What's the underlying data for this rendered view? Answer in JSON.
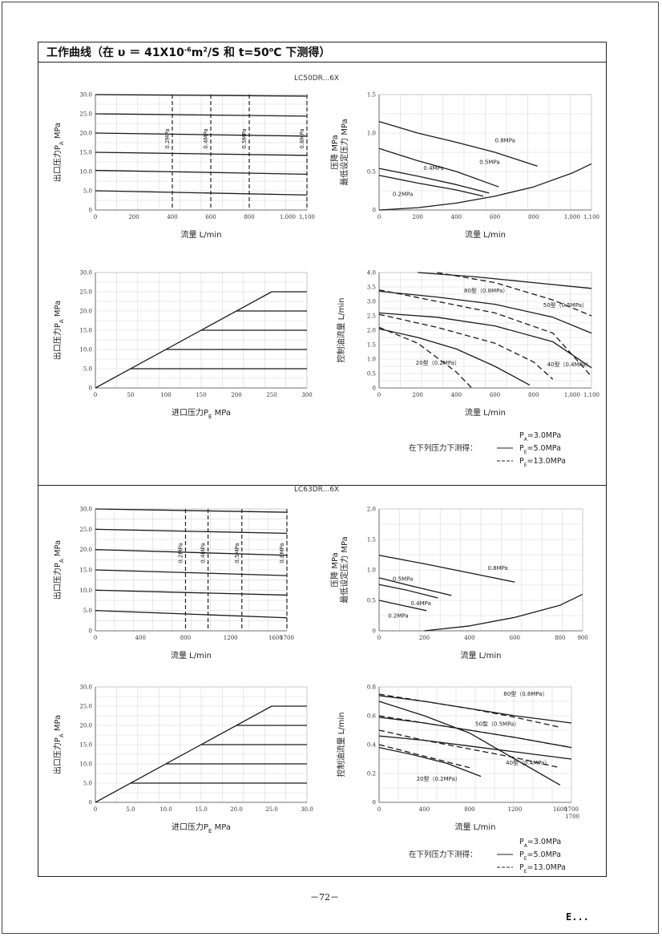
{
  "document": {
    "title_html": "工作曲线（在 υ ＝ 41X10<sup>-6</sup>m<sup>2</sup>/S 和 t=50<sup>o</sup>C 下测得）",
    "page_number": "－72－",
    "logo_text": "E..."
  },
  "sections": [
    {
      "model_label": "LC50DR...6X"
    },
    {
      "model_label": "LC63DR...6X"
    }
  ],
  "legend": {
    "prefix": "在下列压力下测得：",
    "items": [
      {
        "label": "P",
        "sub": "A",
        "value": "=3.0MPa",
        "style": "none"
      },
      {
        "label": "P",
        "sub": "E",
        "value": "=5.0MPa",
        "style": "solid"
      },
      {
        "label": "P",
        "sub": "E",
        "value": "=13.0MPa",
        "style": "dashed"
      }
    ]
  },
  "chart_data": [
    {
      "id": "lc50-outlet-vs-flow",
      "type": "line",
      "xlabel": {
        "text": "流量 L/min"
      },
      "ylabel": {
        "text": "出口压力P",
        "sub": "A",
        "unit": " MPa"
      },
      "xlim": [
        0,
        1100
      ],
      "ylim": [
        0,
        30
      ],
      "xticks": [
        "0",
        "200",
        "400",
        "600",
        "800",
        "1,000",
        "1,100"
      ],
      "xtick_values": [
        0,
        200,
        400,
        600,
        800,
        1000,
        1100
      ],
      "yticks": [
        "0",
        "5.0",
        "10.0",
        "15.0",
        "20.0",
        "25.0",
        "30.0"
      ],
      "ytick_values": [
        0,
        5,
        10,
        15,
        20,
        25,
        30
      ],
      "series": [
        {
          "x": [
            0,
            1100
          ],
          "y": [
            30,
            29.6
          ]
        },
        {
          "x": [
            0,
            1100
          ],
          "y": [
            25,
            24.4
          ]
        },
        {
          "x": [
            0,
            1100
          ],
          "y": [
            20,
            19.2
          ]
        },
        {
          "x": [
            0,
            1100
          ],
          "y": [
            15,
            14.2
          ]
        },
        {
          "x": [
            0,
            1100
          ],
          "y": [
            10.3,
            9.3
          ]
        },
        {
          "x": [
            0,
            1100
          ],
          "y": [
            5,
            3.9
          ]
        }
      ],
      "vlines": [
        {
          "x": 400,
          "label": "0.2MPa"
        },
        {
          "x": 600,
          "label": "0.4MPa"
        },
        {
          "x": 800,
          "label": "0.5MPa"
        },
        {
          "x": 1100,
          "label": "0.8MPa"
        }
      ]
    },
    {
      "id": "lc50-pressure-drop",
      "type": "line",
      "xlabel": {
        "text": "流量 L/min"
      },
      "ylabel": {
        "text": "压降 MPa",
        "text2": "最低设定压力 MPa"
      },
      "xlim": [
        0,
        1100
      ],
      "ylim": [
        0,
        1.5
      ],
      "xticks": [
        "0",
        "200",
        "400",
        "600",
        "800",
        "1,000",
        "1,100"
      ],
      "xtick_values": [
        0,
        200,
        400,
        600,
        800,
        1000,
        1100
      ],
      "yticks": [
        "0",
        "0.5",
        "1.0",
        "1.5"
      ],
      "ytick_values": [
        0,
        0.5,
        1.0,
        1.5
      ],
      "series": [
        {
          "x": [
            0,
            200,
            400,
            600,
            820
          ],
          "y": [
            1.15,
            1.0,
            0.88,
            0.75,
            0.57
          ]
        },
        {
          "x": [
            0,
            200,
            400,
            620
          ],
          "y": [
            0.8,
            0.64,
            0.5,
            0.3
          ]
        },
        {
          "x": [
            0,
            200,
            400,
            570
          ],
          "y": [
            0.54,
            0.44,
            0.33,
            0.22
          ]
        },
        {
          "x": [
            0,
            200,
            400,
            540
          ],
          "y": [
            0.45,
            0.35,
            0.26,
            0.18
          ]
        },
        {
          "x": [
            0,
            200,
            400,
            600,
            800,
            1000,
            1100
          ],
          "y": [
            0,
            0.03,
            0.09,
            0.18,
            0.3,
            0.48,
            0.6
          ]
        }
      ],
      "annotations": [
        {
          "text": "0.8MPa",
          "x": 600,
          "y": 0.88
        },
        {
          "text": "0.5MPa",
          "x": 520,
          "y": 0.6
        },
        {
          "text": "0.4MPa",
          "x": 230,
          "y": 0.52
        },
        {
          "text": "0.2MPa",
          "x": 70,
          "y": 0.18
        }
      ]
    },
    {
      "id": "lc50-outlet-vs-inlet",
      "type": "line",
      "xlabel": {
        "text": "进口压力P",
        "sub": "E",
        "unit": " MPa"
      },
      "ylabel": {
        "text": "出口压力P",
        "sub": "A",
        "unit": " MPa"
      },
      "xlim": [
        0,
        300
      ],
      "ylim": [
        0,
        30
      ],
      "xticks": [
        "0",
        "50",
        "100",
        "150",
        "200",
        "250",
        "300"
      ],
      "xtick_values": [
        0,
        50,
        100,
        150,
        200,
        250,
        300
      ],
      "yticks": [
        "0",
        "5.0",
        "10.0",
        "15.0",
        "20.0",
        "25.0",
        "30.0"
      ],
      "ytick_values": [
        0,
        5,
        10,
        15,
        20,
        25,
        30
      ],
      "series": [
        {
          "x": [
            0,
            250,
            300
          ],
          "y": [
            0,
            25,
            25
          ]
        },
        {
          "x": [
            200,
            300
          ],
          "y": [
            20,
            20
          ]
        },
        {
          "x": [
            150,
            300
          ],
          "y": [
            15,
            15
          ]
        },
        {
          "x": [
            100,
            300
          ],
          "y": [
            10,
            10
          ]
        },
        {
          "x": [
            50,
            300
          ],
          "y": [
            5,
            5
          ]
        }
      ]
    },
    {
      "id": "lc50-control-oil-flow",
      "type": "line",
      "xlabel": {
        "text": "流量 L/min"
      },
      "ylabel": {
        "text": "控制油流量 L/min"
      },
      "xlim": [
        0,
        1100
      ],
      "ylim": [
        0,
        4.0
      ],
      "xticks": [
        "0",
        "200",
        "400",
        "600",
        "800",
        "1,000",
        "1,100"
      ],
      "xtick_values": [
        0,
        200,
        400,
        600,
        800,
        1000,
        1100
      ],
      "yticks": [
        "0",
        "0.5",
        "1.0",
        "1.5",
        "2.0",
        "2.5",
        "3.0",
        "3.5",
        "4.0"
      ],
      "ytick_values": [
        0,
        0.5,
        1.0,
        1.5,
        2.0,
        2.5,
        3.0,
        3.5,
        4.0
      ],
      "series": [
        {
          "x": [
            200,
            500,
            800,
            1100
          ],
          "y": [
            4.0,
            3.85,
            3.65,
            3.45
          ],
          "style": "solid"
        },
        {
          "x": [
            0,
            300,
            600,
            900,
            1100
          ],
          "y": [
            3.35,
            3.15,
            2.9,
            2.45,
            1.9
          ],
          "style": "solid"
        },
        {
          "x": [
            0,
            300,
            600,
            900,
            1100
          ],
          "y": [
            2.6,
            2.45,
            2.15,
            1.6,
            0.7
          ],
          "style": "solid"
        },
        {
          "x": [
            0,
            200,
            400,
            600,
            780
          ],
          "y": [
            2.05,
            1.75,
            1.35,
            0.75,
            0.1
          ],
          "style": "solid"
        },
        {
          "x": [
            300,
            600,
            900,
            1100
          ],
          "y": [
            4.0,
            3.65,
            3.05,
            2.5
          ],
          "style": "dashed"
        },
        {
          "x": [
            0,
            300,
            600,
            900,
            1100
          ],
          "y": [
            3.4,
            3.0,
            2.6,
            1.9,
            0.4
          ],
          "style": "dashed"
        },
        {
          "x": [
            0,
            300,
            600,
            800,
            900
          ],
          "y": [
            2.55,
            2.1,
            1.55,
            0.9,
            0.3
          ],
          "style": "dashed"
        },
        {
          "x": [
            0,
            200,
            400,
            480
          ],
          "y": [
            2.1,
            1.55,
            0.55,
            0.0
          ],
          "style": "dashed"
        }
      ],
      "annotations": [
        {
          "text": "80型（0.8MPa）",
          "x": 440,
          "y": 3.3
        },
        {
          "text": "50型（0.5MPa）",
          "x": 850,
          "y": 2.8
        },
        {
          "text": "40型（0.4MPa）",
          "x": 870,
          "y": 0.75
        },
        {
          "text": "20型（0.2MPa）",
          "x": 190,
          "y": 0.8
        }
      ]
    },
    {
      "id": "lc63-outlet-vs-flow",
      "type": "line",
      "xlabel": {
        "text": "流量 L/min"
      },
      "ylabel": {
        "text": "出口压力P",
        "sub": "A",
        "unit": " MPa"
      },
      "xlim": [
        0,
        1700
      ],
      "ylim": [
        0,
        30
      ],
      "xticks": [
        "0",
        "400",
        "800",
        "1200",
        "1600",
        "1700"
      ],
      "xtick_values": [
        0,
        400,
        800,
        1200,
        1600,
        1700
      ],
      "yticks": [
        "0",
        "5.0",
        "10.0",
        "15.0",
        "20.0",
        "25.0",
        "30.0"
      ],
      "ytick_values": [
        0,
        5,
        10,
        15,
        20,
        25,
        30
      ],
      "series": [
        {
          "x": [
            0,
            1700
          ],
          "y": [
            30,
            29.2
          ]
        },
        {
          "x": [
            0,
            1700
          ],
          "y": [
            25,
            24
          ]
        },
        {
          "x": [
            0,
            1700
          ],
          "y": [
            20,
            18.6
          ]
        },
        {
          "x": [
            0,
            1700
          ],
          "y": [
            15,
            13.6
          ]
        },
        {
          "x": [
            0,
            1700
          ],
          "y": [
            10,
            8.8
          ]
        },
        {
          "x": [
            0,
            1700
          ],
          "y": [
            5,
            3.2
          ]
        }
      ],
      "vlines": [
        {
          "x": 800,
          "label": "0.2MPa"
        },
        {
          "x": 1000,
          "label": "0.4MPa"
        },
        {
          "x": 1300,
          "label": "0.5MPa"
        },
        {
          "x": 1700,
          "label": "0.8MPa"
        }
      ]
    },
    {
      "id": "lc63-pressure-drop",
      "type": "line",
      "xlabel": {
        "text": "流量 L/min"
      },
      "ylabel": {
        "text": "压降 MPa",
        "text2": "最低设定压力 MPa"
      },
      "xlim": [
        0,
        900
      ],
      "ylim": [
        0,
        2.0
      ],
      "xticks": [
        "0",
        "200",
        "400",
        "600",
        "800",
        "900"
      ],
      "xtick_values": [
        0,
        200,
        400,
        600,
        800,
        900
      ],
      "yticks": [
        "0",
        "0.5",
        "1.0",
        "1.5",
        "2.0"
      ],
      "ytick_values": [
        0,
        0.5,
        1.0,
        1.5,
        2.0
      ],
      "series": [
        {
          "x": [
            0,
            200,
            400,
            600
          ],
          "y": [
            1.24,
            1.1,
            0.95,
            0.8
          ]
        },
        {
          "x": [
            0,
            150,
            320
          ],
          "y": [
            0.87,
            0.73,
            0.58
          ]
        },
        {
          "x": [
            0,
            120,
            260
          ],
          "y": [
            0.76,
            0.67,
            0.54
          ]
        },
        {
          "x": [
            0,
            100,
            210
          ],
          "y": [
            0.5,
            0.42,
            0.33
          ]
        },
        {
          "x": [
            200,
            400,
            600,
            800,
            900
          ],
          "y": [
            0,
            0.08,
            0.22,
            0.42,
            0.6
          ]
        }
      ],
      "annotations": [
        {
          "text": "0.8MPa",
          "x": 480,
          "y": 1.0
        },
        {
          "text": "0.5MPa",
          "x": 60,
          "y": 0.82
        },
        {
          "text": "0.4MPa",
          "x": 140,
          "y": 0.42
        },
        {
          "text": "0.2MPa",
          "x": 40,
          "y": 0.22
        }
      ]
    },
    {
      "id": "lc63-outlet-vs-inlet",
      "type": "line",
      "xlabel": {
        "text": "进口压力P",
        "sub": "E",
        "unit": " MPa"
      },
      "ylabel": {
        "text": "出口压力P",
        "sub": "A",
        "unit": " MPa"
      },
      "xlim": [
        0,
        30
      ],
      "ylim": [
        0,
        30
      ],
      "xticks": [
        "0",
        "5.0",
        "10.0",
        "15.0",
        "20.0",
        "25.0",
        "30.0"
      ],
      "xtick_values": [
        0,
        5,
        10,
        15,
        20,
        25,
        30
      ],
      "yticks": [
        "0",
        "5.0",
        "10.0",
        "15.0",
        "20.0",
        "25.0",
        "30.0"
      ],
      "ytick_values": [
        0,
        5,
        10,
        15,
        20,
        25,
        30
      ],
      "series": [
        {
          "x": [
            0,
            25,
            30
          ],
          "y": [
            0,
            25,
            25
          ]
        },
        {
          "x": [
            20,
            30
          ],
          "y": [
            20,
            20
          ]
        },
        {
          "x": [
            15,
            30
          ],
          "y": [
            15,
            15
          ]
        },
        {
          "x": [
            10,
            30
          ],
          "y": [
            10,
            10
          ]
        },
        {
          "x": [
            5,
            30
          ],
          "y": [
            5,
            5
          ]
        }
      ]
    },
    {
      "id": "lc63-control-oil-flow",
      "type": "line",
      "xlabel": {
        "text": "流量 L/min"
      },
      "ylabel": {
        "text": "控制油流量 L/min"
      },
      "xlim": [
        0,
        1700
      ],
      "ylim": [
        0,
        0.8
      ],
      "xticks": [
        "0",
        "400",
        "800",
        "1200",
        "1600",
        "1700"
      ],
      "xtick_values": [
        0,
        400,
        800,
        1200,
        1600,
        1700
      ],
      "yticks": [
        "0",
        "0.2",
        "0.4",
        "0.6",
        "0.8"
      ],
      "ytick_values": [
        0,
        0.2,
        0.4,
        0.6,
        0.8
      ],
      "series": [
        {
          "x": [
            0,
            400,
            800,
            1200,
            1700
          ],
          "y": [
            0.74,
            0.7,
            0.65,
            0.6,
            0.55
          ],
          "style": "solid"
        },
        {
          "x": [
            0,
            400,
            800,
            1200,
            1700
          ],
          "y": [
            0.59,
            0.55,
            0.5,
            0.45,
            0.38
          ],
          "style": "solid"
        },
        {
          "x": [
            0,
            400,
            800,
            1200,
            1700
          ],
          "y": [
            0.46,
            0.43,
            0.39,
            0.35,
            0.3
          ],
          "style": "solid"
        },
        {
          "x": [
            0,
            300,
            600,
            900
          ],
          "y": [
            0.38,
            0.33,
            0.27,
            0.18
          ],
          "style": "solid"
        },
        {
          "x": [
            0,
            400,
            800,
            1200,
            1600
          ],
          "y": [
            0.75,
            0.7,
            0.65,
            0.59,
            0.52
          ],
          "style": "dashed"
        },
        {
          "x": [
            0,
            400,
            800,
            1200,
            1700
          ],
          "y": [
            0.6,
            0.55,
            0.5,
            0.45,
            0.38
          ],
          "style": "dashed"
        },
        {
          "x": [
            0,
            400,
            800,
            1200,
            1600
          ],
          "y": [
            0.5,
            0.43,
            0.37,
            0.31,
            0.24
          ],
          "style": "dashed"
        },
        {
          "x": [
            0,
            300,
            600,
            800
          ],
          "y": [
            0.4,
            0.34,
            0.28,
            0.24
          ],
          "style": "dashed"
        },
        {
          "x": [
            0,
            400,
            800,
            1200,
            1600
          ],
          "y": [
            0.7,
            0.6,
            0.48,
            0.3,
            0.12
          ],
          "style": "solid"
        }
      ],
      "annotations": [
        {
          "text": "80型（0.8MPa）",
          "x": 1100,
          "y": 0.74
        },
        {
          "text": "50型（0.5MPa）",
          "x": 850,
          "y": 0.53
        },
        {
          "text": "40型（0.4MPa）",
          "x": 1120,
          "y": 0.26
        },
        {
          "text": "20型（0.2MPa）",
          "x": 330,
          "y": 0.15
        }
      ],
      "x_end_note": "1700"
    }
  ]
}
